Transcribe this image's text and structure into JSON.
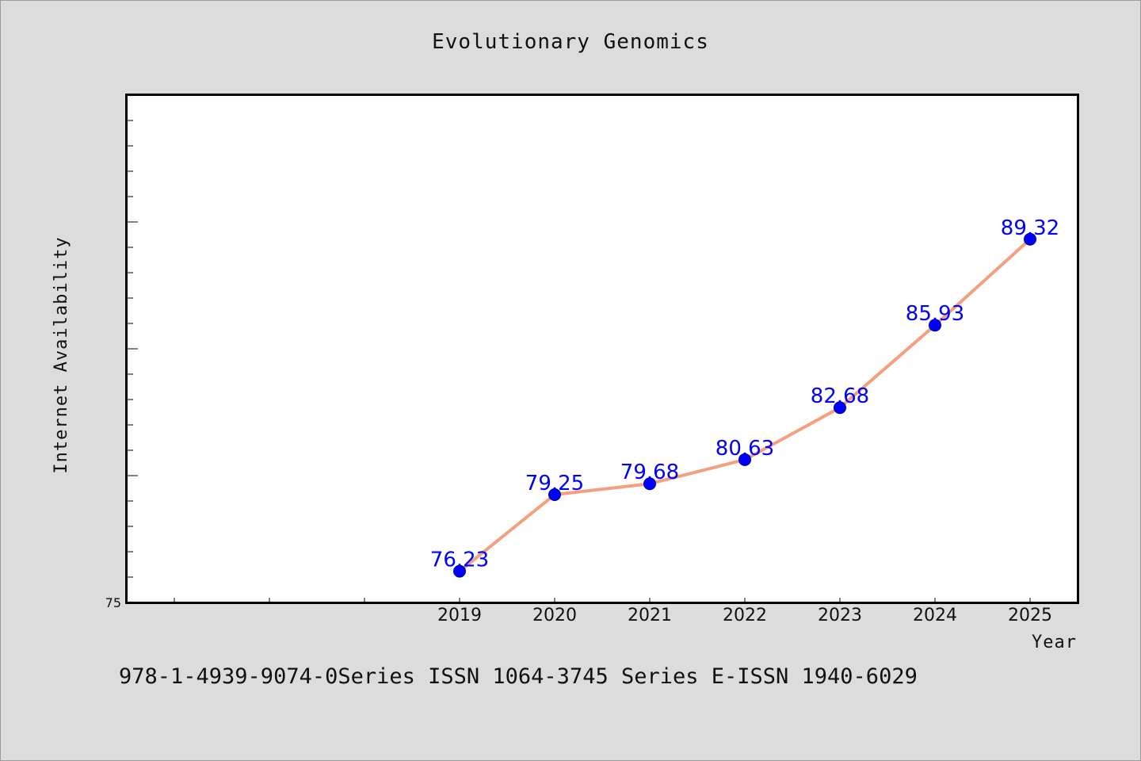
{
  "chart_data": {
    "type": "line",
    "title": "Evolutionary Genomics",
    "xlabel": "Year",
    "ylabel": "Internet Availability",
    "categories": [
      "2019",
      "2020",
      "2021",
      "2022",
      "2023",
      "2024",
      "2025"
    ],
    "series": [
      {
        "values": [
          76.23,
          79.25,
          79.68,
          80.63,
          82.68,
          85.93,
          89.32
        ],
        "labels": [
          "76.23",
          "79.25",
          "79.68",
          "80.63",
          "82.68",
          "85.93",
          "89.32"
        ]
      }
    ],
    "y_tick_label": "75",
    "ylim": [
      75,
      95
    ],
    "grid": false,
    "colors": {
      "line": "#f4a07f",
      "marker": "#0000ff",
      "label": "#0000ff"
    }
  },
  "footer": "978-1-4939-9074-0Series ISSN 1064-3745 Series E-ISSN 1940-6029"
}
